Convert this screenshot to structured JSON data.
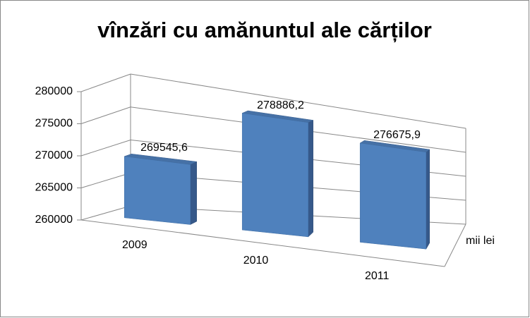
{
  "chart_data": {
    "type": "bar3d",
    "title": "vînzări cu amănuntul ale cărților",
    "categories": [
      "2009",
      "2010",
      "2011"
    ],
    "values": [
      269545.6,
      278886.2,
      276675.9
    ],
    "value_labels": [
      "269545,6",
      "278886,2",
      "276675,9"
    ],
    "series_axis_label": "mii lei",
    "color": "#4f81bd",
    "ylim": [
      260000,
      280000
    ],
    "yticks": [
      260000,
      265000,
      270000,
      275000,
      280000
    ],
    "grid": true
  }
}
